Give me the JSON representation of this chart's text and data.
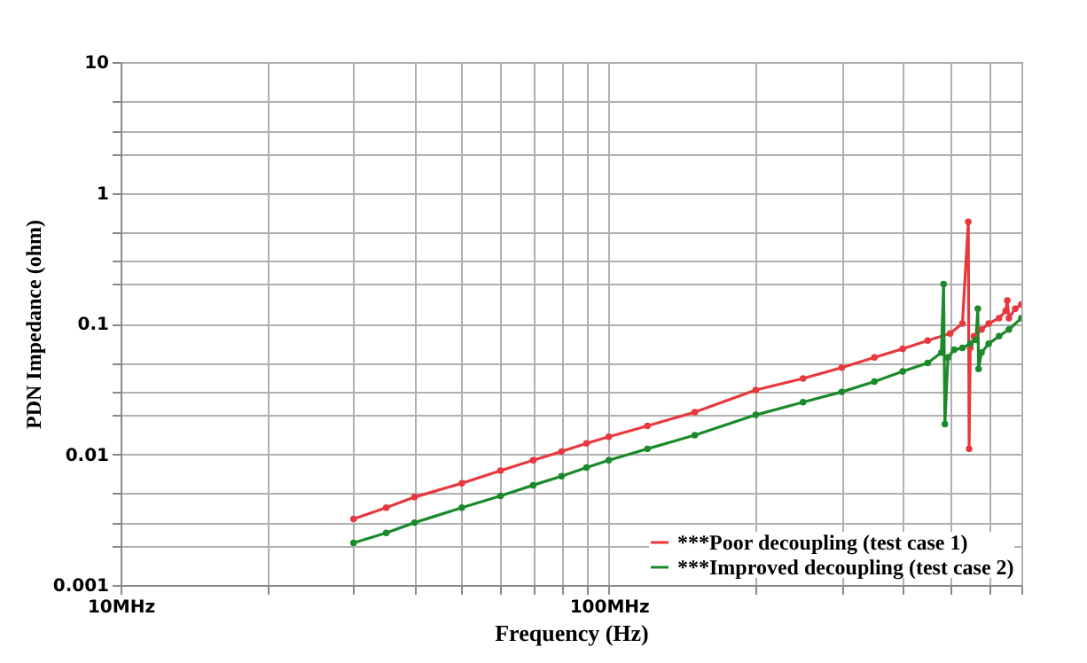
{
  "chart_data": {
    "type": "line",
    "xlabel": "Frequency (Hz)",
    "ylabel": "PDN Impedance (ohm)",
    "log": "xy",
    "grid": true,
    "legend": "bottom right",
    "marker": "circle",
    "line_style": "solid",
    "xlim": [
      10,
      700
    ],
    "xticks": [
      {
        "value": 10,
        "label": "10MHz"
      },
      {
        "value": 20,
        "label": null
      },
      {
        "value": 30,
        "label": null
      },
      {
        "value": 40,
        "label": null
      },
      {
        "value": 50,
        "label": null
      },
      {
        "value": 60,
        "label": null
      },
      {
        "value": 70,
        "label": null
      },
      {
        "value": 80,
        "label": null
      },
      {
        "value": 90,
        "label": null
      },
      {
        "value": 100,
        "label": "100MHz"
      },
      {
        "value": 200,
        "label": null
      },
      {
        "value": 300,
        "label": null
      },
      {
        "value": 400,
        "label": null
      },
      {
        "value": 500,
        "label": null
      },
      {
        "value": 600,
        "label": null
      },
      {
        "value": 700,
        "label": null
      }
    ],
    "ylim": [
      0.001,
      10
    ],
    "yticks": [
      0.001,
      {
        "value": 0.002,
        "label": null
      },
      {
        "value": 0.003,
        "label": null
      },
      {
        "value": 0.005,
        "label": null
      },
      0.01,
      {
        "value": 0.02,
        "label": null
      },
      {
        "value": 0.03,
        "label": null
      },
      {
        "value": 0.05,
        "label": null
      },
      0.1,
      {
        "value": 0.2,
        "label": null
      },
      {
        "value": 0.3,
        "label": null
      },
      {
        "value": 0.5,
        "label": null
      },
      1,
      {
        "value": 2,
        "label": null
      },
      {
        "value": 3,
        "label": null
      },
      {
        "value": 5,
        "label": null
      },
      10
    ],
    "series": [
      {
        "name": "***Poor decoupling  (test case 1)",
        "color": "#e8383d",
        "x": [
          30,
          35,
          40,
          50,
          60,
          70,
          80,
          90,
          100,
          120,
          150,
          200,
          250,
          300,
          350,
          400,
          450,
          500,
          530,
          545,
          547,
          550,
          560,
          580,
          600,
          630,
          650,
          655,
          660,
          680,
          700
        ],
        "values": [
          0.0032,
          0.0039,
          0.0047,
          0.006,
          0.0075,
          0.009,
          0.0105,
          0.0121,
          0.0136,
          0.0165,
          0.021,
          0.031,
          0.038,
          0.046,
          0.055,
          0.064,
          0.074,
          0.084,
          0.1,
          0.6,
          0.011,
          0.065,
          0.08,
          0.09,
          0.1,
          0.11,
          0.125,
          0.15,
          0.11,
          0.13,
          0.14
        ]
      },
      {
        "name": "***Improved decoupling (test case 2)",
        "color": "#1a8a2a",
        "x": [
          30,
          35,
          40,
          50,
          60,
          70,
          80,
          90,
          100,
          120,
          150,
          200,
          250,
          300,
          350,
          400,
          450,
          480,
          485,
          488,
          495,
          510,
          530,
          550,
          565,
          570,
          572,
          580,
          600,
          630,
          660,
          700
        ],
        "values": [
          0.0021,
          0.0025,
          0.003,
          0.0039,
          0.0048,
          0.0058,
          0.0068,
          0.0079,
          0.009,
          0.011,
          0.014,
          0.02,
          0.025,
          0.03,
          0.036,
          0.043,
          0.05,
          0.06,
          0.2,
          0.017,
          0.055,
          0.063,
          0.065,
          0.07,
          0.075,
          0.13,
          0.045,
          0.06,
          0.07,
          0.08,
          0.09,
          0.11
        ]
      }
    ]
  }
}
